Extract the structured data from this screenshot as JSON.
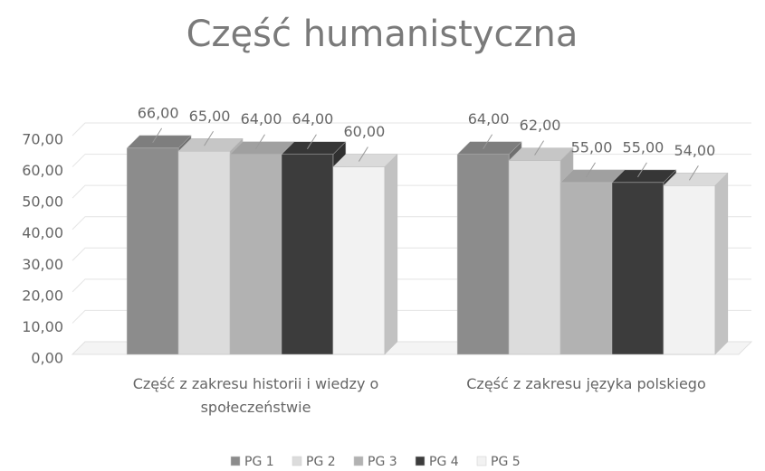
{
  "chart_data": {
    "type": "bar3d",
    "title": "Część humanistyczna",
    "categories": [
      "Część z zakresu historii i wiedzy o społeczeństwie",
      "Część z zakresu języka polskiego"
    ],
    "series": [
      {
        "name": "PG 1",
        "color": "#8c8c8c",
        "values": [
          66,
          64
        ],
        "value_labels": [
          "66,00",
          "64,00"
        ]
      },
      {
        "name": "PG 2",
        "color": "#dcdcdc",
        "values": [
          65,
          62
        ],
        "value_labels": [
          "65,00",
          "62,00"
        ]
      },
      {
        "name": "PG 3",
        "color": "#b2b2b2",
        "values": [
          64,
          55
        ],
        "value_labels": [
          "64,00",
          "55,00"
        ]
      },
      {
        "name": "PG 4",
        "color": "#3c3c3c",
        "values": [
          64,
          55
        ],
        "value_labels": [
          "64,00",
          "55,00"
        ]
      },
      {
        "name": "PG 5",
        "color": "#f2f2f2",
        "values": [
          60,
          54
        ],
        "value_labels": [
          "60,00",
          "54,00"
        ]
      }
    ],
    "ylim": [
      0,
      70
    ],
    "yticks": [
      {
        "value": 0,
        "label": "0,00"
      },
      {
        "value": 10,
        "label": "10,00"
      },
      {
        "value": 20,
        "label": "20,00"
      },
      {
        "value": 30,
        "label": "30,00"
      },
      {
        "value": 40,
        "label": "40,00"
      },
      {
        "value": 50,
        "label": "50,00"
      },
      {
        "value": 60,
        "label": "60,00"
      },
      {
        "value": 70,
        "label": "70,00"
      }
    ],
    "grid": true,
    "legend": "bottom"
  }
}
